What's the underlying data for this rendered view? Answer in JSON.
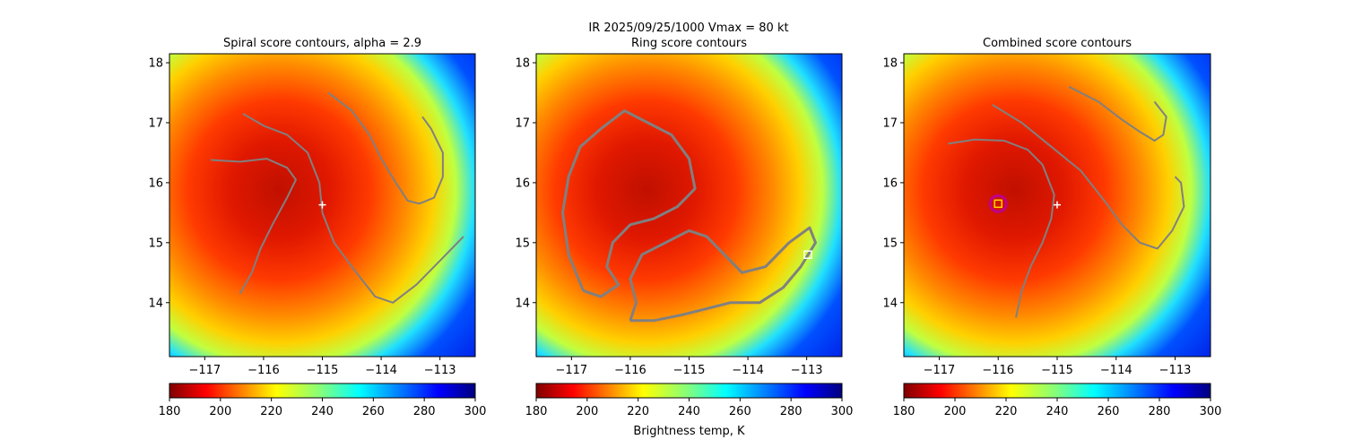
{
  "figure": {
    "suptitle_line1": "IR  2025/09/25/1000    Vmax = 80 kt"
  },
  "colors": {
    "contour": "#808080",
    "center_marker": "#ffffff",
    "best_ring": "#c0008c",
    "best_box": "#ffd700",
    "colormap": "jet_reversed"
  },
  "chart_data": [
    {
      "type": "heatmap",
      "title": "Spiral score contours, alpha =  2.9",
      "x_ticks": [
        -117,
        -116,
        -115,
        -114,
        -113
      ],
      "y_ticks": [
        14,
        15,
        16,
        17,
        18
      ],
      "xlim": [
        -117.6,
        -112.4
      ],
      "ylim": [
        13.1,
        18.15
      ],
      "center_marker": [
        -115.0,
        15.63
      ],
      "contours": [
        [
          [
            -116.4,
            14.15
          ],
          [
            -116.2,
            14.5
          ],
          [
            -116.05,
            14.9
          ],
          [
            -115.85,
            15.3
          ],
          [
            -115.6,
            15.75
          ],
          [
            -115.45,
            16.05
          ],
          [
            -115.6,
            16.25
          ],
          [
            -115.95,
            16.4
          ],
          [
            -116.4,
            16.35
          ],
          [
            -116.9,
            16.38
          ]
        ],
        [
          [
            -116.35,
            17.15
          ],
          [
            -116.0,
            16.95
          ],
          [
            -115.6,
            16.8
          ],
          [
            -115.25,
            16.5
          ],
          [
            -115.05,
            16.0
          ],
          [
            -115.0,
            15.5
          ],
          [
            -114.8,
            15.0
          ],
          [
            -114.5,
            14.6
          ],
          [
            -114.1,
            14.1
          ],
          [
            -113.8,
            14.0
          ],
          [
            -113.4,
            14.3
          ],
          [
            -113.0,
            14.7
          ],
          [
            -112.6,
            15.1
          ]
        ],
        [
          [
            -114.9,
            17.5
          ],
          [
            -114.5,
            17.2
          ],
          [
            -114.2,
            16.8
          ],
          [
            -114.0,
            16.4
          ],
          [
            -113.75,
            16.0
          ],
          [
            -113.55,
            15.7
          ],
          [
            -113.35,
            15.65
          ],
          [
            -113.1,
            15.75
          ],
          [
            -112.95,
            16.1
          ],
          [
            -112.95,
            16.5
          ],
          [
            -113.15,
            16.9
          ],
          [
            -113.3,
            17.1
          ]
        ]
      ]
    },
    {
      "type": "heatmap",
      "title": "Ring score contours",
      "x_ticks": [
        -117,
        -116,
        -115,
        -114,
        -113
      ],
      "y_ticks": [
        14,
        15,
        16,
        17,
        18
      ],
      "xlim": [
        -117.6,
        -112.4
      ],
      "ylim": [
        13.1,
        18.15
      ],
      "best_box": [
        -112.98,
        14.8
      ],
      "contours": [
        [
          [
            -116.8,
            14.2
          ],
          [
            -117.05,
            14.8
          ],
          [
            -117.15,
            15.5
          ],
          [
            -117.05,
            16.1
          ],
          [
            -116.85,
            16.6
          ],
          [
            -116.5,
            16.9
          ],
          [
            -116.1,
            17.2
          ],
          [
            -115.7,
            17.0
          ],
          [
            -115.3,
            16.8
          ],
          [
            -115.0,
            16.4
          ],
          [
            -114.9,
            15.9
          ],
          [
            -115.2,
            15.6
          ],
          [
            -115.6,
            15.4
          ],
          [
            -116.0,
            15.3
          ],
          [
            -116.3,
            15.0
          ],
          [
            -116.4,
            14.6
          ],
          [
            -116.2,
            14.3
          ],
          [
            -116.5,
            14.1
          ],
          [
            -116.8,
            14.2
          ]
        ],
        [
          [
            -116.0,
            13.7
          ],
          [
            -115.6,
            13.7
          ],
          [
            -115.1,
            13.8
          ],
          [
            -114.7,
            13.9
          ],
          [
            -114.3,
            14.0
          ],
          [
            -113.8,
            14.0
          ],
          [
            -113.4,
            14.25
          ],
          [
            -113.1,
            14.6
          ],
          [
            -112.85,
            15.0
          ],
          [
            -112.95,
            15.25
          ],
          [
            -113.3,
            15.0
          ],
          [
            -113.7,
            14.6
          ],
          [
            -114.1,
            14.5
          ],
          [
            -114.4,
            14.8
          ],
          [
            -114.7,
            15.1
          ],
          [
            -115.0,
            15.2
          ],
          [
            -115.4,
            15.0
          ],
          [
            -115.8,
            14.8
          ],
          [
            -116.0,
            14.4
          ],
          [
            -115.9,
            14.0
          ],
          [
            -116.0,
            13.7
          ]
        ]
      ]
    },
    {
      "type": "heatmap",
      "title": "Combined score contours",
      "x_ticks": [
        -117,
        -116,
        -115,
        -114,
        -113
      ],
      "y_ticks": [
        14,
        15,
        16,
        17,
        18
      ],
      "xlim": [
        -117.6,
        -112.4
      ],
      "ylim": [
        13.1,
        18.15
      ],
      "center_marker": [
        -115.0,
        15.63
      ],
      "best_center": [
        -116.0,
        15.65
      ],
      "contours": [
        [
          [
            -115.7,
            13.75
          ],
          [
            -115.6,
            14.2
          ],
          [
            -115.45,
            14.6
          ],
          [
            -115.25,
            15.0
          ],
          [
            -115.1,
            15.4
          ],
          [
            -115.05,
            15.8
          ],
          [
            -115.25,
            16.3
          ],
          [
            -115.5,
            16.55
          ],
          [
            -115.9,
            16.7
          ],
          [
            -116.4,
            16.72
          ],
          [
            -116.85,
            16.65
          ]
        ],
        [
          [
            -116.1,
            17.3
          ],
          [
            -115.6,
            17.0
          ],
          [
            -115.1,
            16.6
          ],
          [
            -114.6,
            16.2
          ],
          [
            -114.2,
            15.7
          ],
          [
            -113.9,
            15.3
          ],
          [
            -113.6,
            15.0
          ],
          [
            -113.3,
            14.9
          ],
          [
            -113.05,
            15.2
          ],
          [
            -112.85,
            15.6
          ],
          [
            -112.9,
            16.0
          ],
          [
            -113.0,
            16.1
          ]
        ],
        [
          [
            -114.8,
            17.6
          ],
          [
            -114.3,
            17.35
          ],
          [
            -113.9,
            17.05
          ],
          [
            -113.6,
            16.85
          ],
          [
            -113.35,
            16.7
          ],
          [
            -113.2,
            16.8
          ],
          [
            -113.15,
            17.1
          ],
          [
            -113.35,
            17.35
          ]
        ]
      ]
    }
  ],
  "colorbars": [
    {
      "ticks": [
        180,
        200,
        220,
        240,
        260,
        280,
        300
      ],
      "label": ""
    },
    {
      "ticks": [
        180,
        200,
        220,
        240,
        260,
        280,
        300
      ],
      "label": "Brightness temp, K"
    },
    {
      "ticks": [
        180,
        200,
        220,
        240,
        260,
        280,
        300
      ],
      "label": ""
    }
  ]
}
